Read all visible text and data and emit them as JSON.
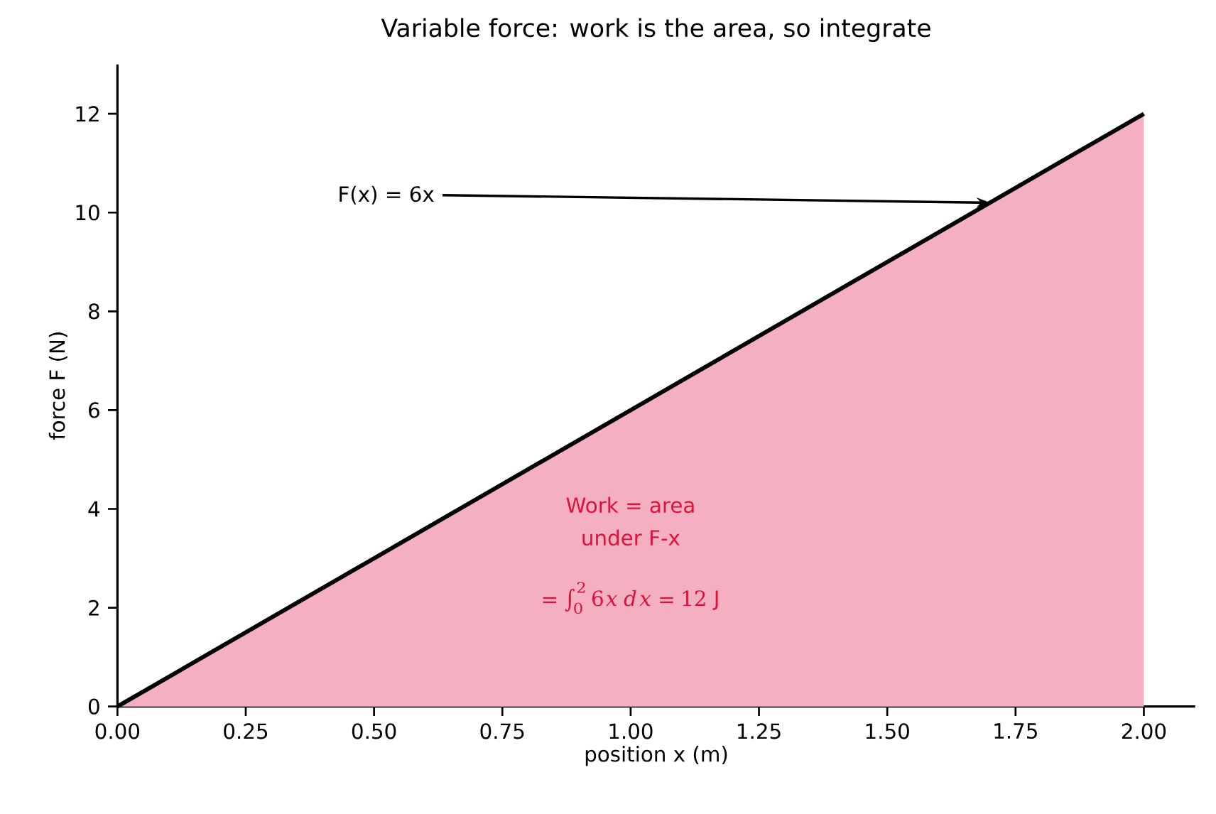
{
  "chart_data": {
    "type": "area",
    "title": "Variable force: work is the area, so integrate",
    "xlabel": "position x (m)",
    "ylabel": "force F (N)",
    "series": [
      {
        "color": "#f4afc0",
        "x": [
          0,
          2
        ],
        "values": [
          0,
          12
        ]
      }
    ],
    "xlim": [
      0,
      2.1
    ],
    "ylim": [
      0,
      13
    ],
    "xticks": [
      {
        "value": 0,
        "label": "0.00"
      },
      {
        "value": 0.25,
        "label": "0.25"
      },
      {
        "value": 0.5,
        "label": "0.50"
      },
      {
        "value": 0.75,
        "label": "0.75"
      },
      {
        "value": 1,
        "label": "1.00"
      },
      {
        "value": 1.25,
        "label": "1.25"
      },
      {
        "value": 1.5,
        "label": "1.50"
      },
      {
        "value": 1.75,
        "label": "1.75"
      },
      {
        "value": 2,
        "label": "2.00"
      }
    ],
    "yticks": [
      0,
      2,
      4,
      6,
      8,
      10,
      12
    ],
    "annotations": [
      {
        "text": "F(x) = 6x",
        "x": 1.7,
        "y": 10.2
      },
      "Work = area",
      "under F-x",
      "= \\int_0^2 6x\\,dx = 12\\ \\mathrm{J}"
    ]
  }
}
